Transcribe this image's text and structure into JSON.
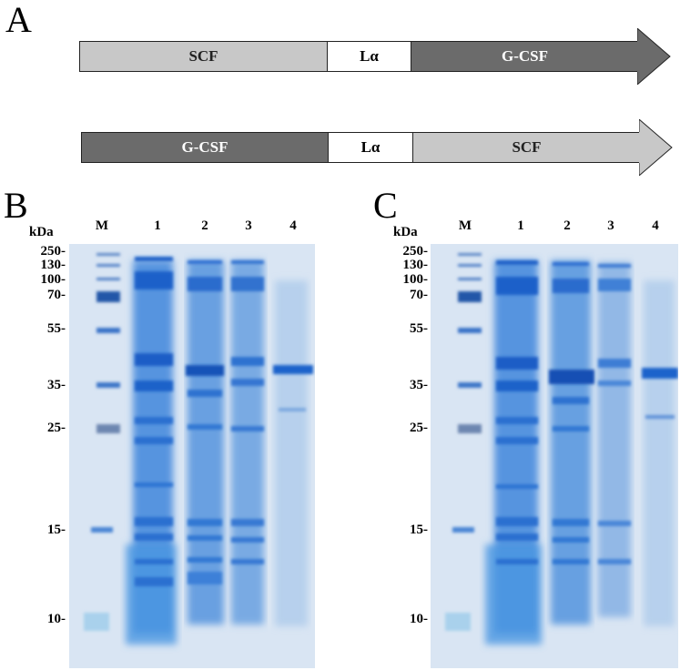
{
  "panels": {
    "a": "A",
    "b": "B",
    "c": "C"
  },
  "constructs": [
    {
      "segments": [
        "SCF",
        "Lα",
        "G-CSF"
      ]
    },
    {
      "segments": [
        "G-CSF",
        "Lα",
        "SCF"
      ]
    }
  ],
  "gel_b": {
    "unit": "kDa",
    "lanes": [
      "M",
      "1",
      "2",
      "3",
      "4"
    ],
    "markers": [
      "250-",
      "130-",
      "100-",
      "70-",
      "55-",
      "35-",
      "25-",
      "15-",
      "10-"
    ]
  },
  "gel_c": {
    "unit": "kDa",
    "lanes": [
      "M",
      "1",
      "2",
      "3",
      "4"
    ],
    "markers": [
      "250-",
      "130-",
      "100-",
      "70-",
      "55-",
      "35-",
      "25-",
      "15-",
      "10-"
    ]
  }
}
